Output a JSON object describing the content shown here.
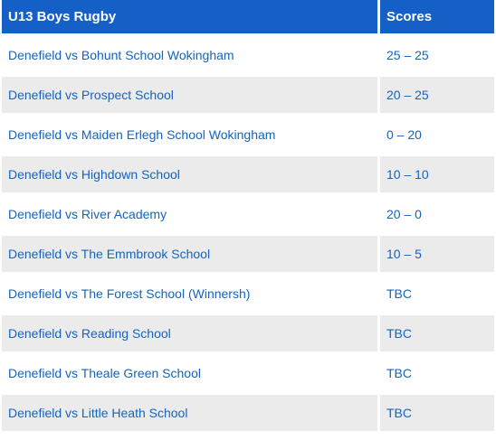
{
  "table": {
    "header": {
      "match": "U13 Boys Rugby",
      "score": "Scores"
    },
    "rows": [
      {
        "match": "Denefield vs Bohunt School Wokingham",
        "score": "25 – 25"
      },
      {
        "match": "Denefield vs Prospect School",
        "score": "20 – 25"
      },
      {
        "match": "Denefield vs Maiden Erlegh School Wokingham",
        "score": "0 – 20"
      },
      {
        "match": "Denefield vs Highdown School",
        "score": "10 – 10"
      },
      {
        "match": "Denefield vs River Academy",
        "score": "20 – 0"
      },
      {
        "match": "Denefield vs The Emmbrook School",
        "score": "10 – 5"
      },
      {
        "match": "Denefield vs The Forest School (Winnersh)",
        "score": "TBC"
      },
      {
        "match": "Denefield vs Reading School",
        "score": "TBC"
      },
      {
        "match": "Denefield vs Theale Green School",
        "score": "TBC"
      },
      {
        "match": "Denefield vs Little Heath School",
        "score": "TBC"
      }
    ]
  },
  "colors": {
    "header_bg": "#1560c7",
    "header_text": "#ffffff",
    "link_text": "#1463c1",
    "stripe": "#ebebeb"
  }
}
